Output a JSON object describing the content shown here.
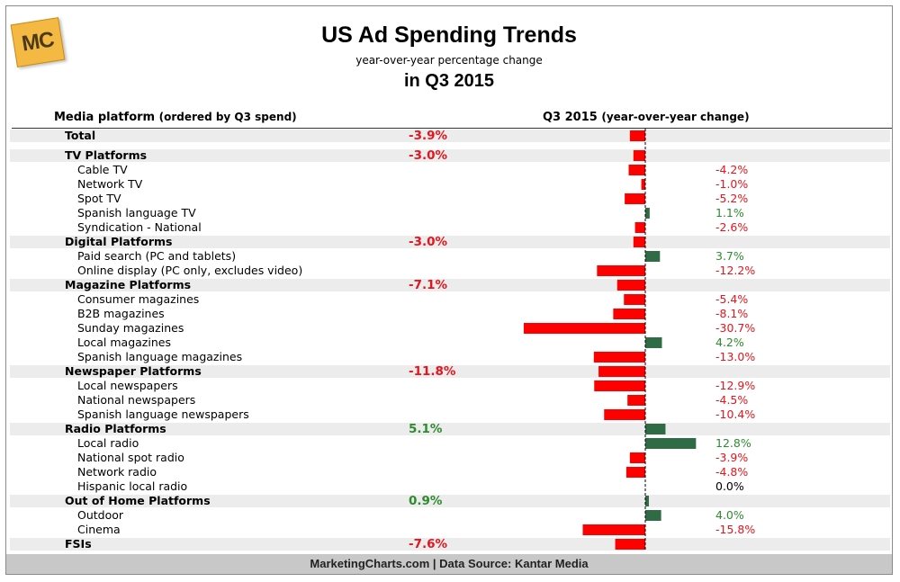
{
  "logo": {
    "text": "MC"
  },
  "header": {
    "title": "US Ad Spending Trends",
    "subtitle": "year-over-year percentage change",
    "title2": "in Q3 2015"
  },
  "columns": {
    "left_main": "Media platform",
    "left_note": "(ordered by Q3 spend)",
    "right_main": "Q3 2015",
    "right_note": "(year-over-year change)"
  },
  "colors": {
    "negative": "#ff0000",
    "positive": "#2f6b45",
    "neg_text": "#e8141c",
    "pos_text": "#2e8b2e"
  },
  "chart_data": {
    "type": "bar",
    "orientation": "horizontal",
    "unit": "%",
    "categories": [
      "Total",
      "TV Platforms",
      "Cable TV",
      "Network TV",
      "Spot TV",
      "Spanish language TV",
      "Syndication - National",
      "Digital Platforms",
      "Paid search (PC and tablets)",
      "Online display (PC only, excludes video)",
      "Magazine Platforms",
      "Consumer magazines",
      "B2B magazines",
      "Sunday magazines",
      "Local magazines",
      "Spanish language magazines",
      "Newspaper Platforms",
      "Local newspapers",
      "National newspapers",
      "Spanish language newspapers",
      "Radio Platforms",
      "Local radio",
      "National spot radio",
      "Network radio",
      "Hispanic local radio",
      "Out of Home Platforms",
      "Outdoor",
      "Cinema",
      "FSIs"
    ],
    "values": [
      -3.9,
      -3.0,
      -4.2,
      -1.0,
      -5.2,
      1.1,
      -2.6,
      -3.0,
      3.7,
      -12.2,
      -7.1,
      -5.4,
      -8.1,
      -30.7,
      4.2,
      -13.0,
      -11.8,
      -12.9,
      -4.5,
      -10.4,
      5.1,
      12.8,
      -3.9,
      -4.8,
      0.0,
      0.9,
      4.0,
      -15.8,
      -7.6
    ],
    "labels": [
      "-3.9%",
      "-3.0%",
      "-4.2%",
      "-1.0%",
      "-5.2%",
      "1.1%",
      "-2.6%",
      "-3.0%",
      "3.7%",
      "-12.2%",
      "-7.1%",
      "-5.4%",
      "-8.1%",
      "-30.7%",
      "4.2%",
      "-13.0%",
      "-11.8%",
      "-12.9%",
      "-4.5%",
      "-10.4%",
      "5.1%",
      "12.8%",
      "-3.9%",
      "-4.8%",
      "0.0%",
      "0.9%",
      "4.0%",
      "-15.8%",
      "-7.6%"
    ],
    "level": [
      "cat",
      "cat",
      "sub",
      "sub",
      "sub",
      "sub",
      "sub",
      "cat",
      "sub",
      "sub",
      "cat",
      "sub",
      "sub",
      "sub",
      "sub",
      "sub",
      "cat",
      "sub",
      "sub",
      "sub",
      "cat",
      "sub",
      "sub",
      "sub",
      "sub",
      "cat",
      "sub",
      "sub",
      "cat"
    ],
    "zero_line": "dashed",
    "title": "US Ad Spending Trends",
    "subtitle": "in Q3 2015"
  },
  "footer": {
    "text": "MarketingCharts.com | Data Source: Kantar Media"
  }
}
